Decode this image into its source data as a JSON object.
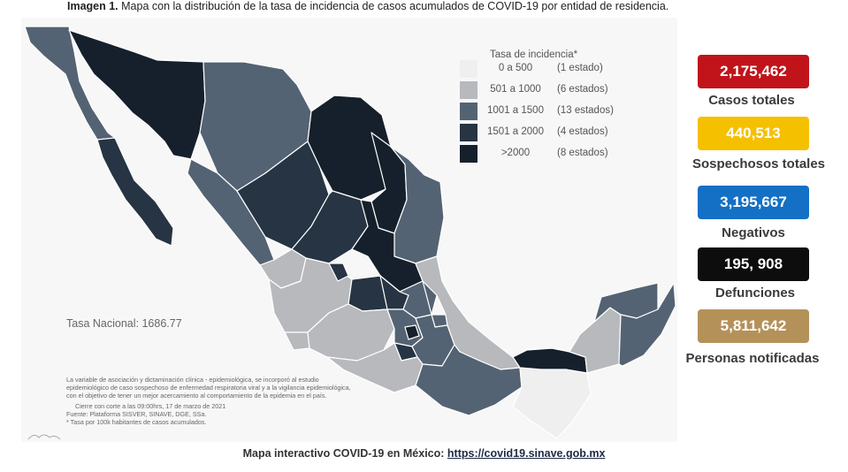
{
  "caption": {
    "bold": "Imagen 1.",
    "text": " Mapa con la distribución de la tasa de incidencia de casos acumulados de COVID-19 por entidad de residencia."
  },
  "legend": {
    "title": "Tasa de incidencia*",
    "rows": [
      {
        "range": "0 a   500",
        "count": "(1 estado)",
        "color": "#efefef"
      },
      {
        "range": "501 a  1000",
        "count": "(6 estados)",
        "color": "#b7b9bc"
      },
      {
        "range": "1001 a  1500",
        "count": "(13 estados)",
        "color": "#546373"
      },
      {
        "range": "1501 a  2000",
        "count": "(4 estados)",
        "color": "#263443"
      },
      {
        "range": ">2000",
        "count": "(8 estados)",
        "color": "#16202c"
      }
    ]
  },
  "tasa_nacional": "Tasa Nacional: 1686.77",
  "notes": [
    "La variable de asociación y dictaminación clínica - epidemiológica, se incorporó al estudio",
    "epidemiológico de caso sospechoso de enfermedad respiratoria viral y a la vigilancia epidemiológica,",
    "con el objetivo de tener un mejor acercamiento al comportamiento de la epidemia en el país.",
    "Cierre con corte a las 09:00hrs, 17 de marzo de 2021",
    "Fuente: Plataforma SISVER, SINAVE, DGE, SSa.",
    "* Tasa por 100k habitantes de casos acumulados."
  ],
  "stats": [
    {
      "value": "2,175,462",
      "label": "Casos totales",
      "color": "#c0141a",
      "text_color": "#ffffff"
    },
    {
      "value": "440,513",
      "label": "Sospechosos totales",
      "color": "#f5c000",
      "text_color": "#ffffff"
    },
    {
      "value": "3,195,667",
      "label": "Negativos",
      "color": "#1470c4",
      "text_color": "#ffffff"
    },
    {
      "value": "195, 908",
      "label": "Defunciones",
      "color": "#0d0d0d",
      "text_color": "#ffffff"
    },
    {
      "value": "5,811,642",
      "label": "Personas notificadas",
      "color": "#b5915a",
      "text_color": "#ffffff"
    }
  ],
  "footer": {
    "text": "Mapa interactivo COVID-19 en México: ",
    "link": "https://covid19.sinave.gob.mx"
  },
  "map_colors": {
    "c0": "#efefef",
    "c1": "#b7b9bc",
    "c2": "#546373",
    "c3": "#263443",
    "c4": "#16202c"
  }
}
